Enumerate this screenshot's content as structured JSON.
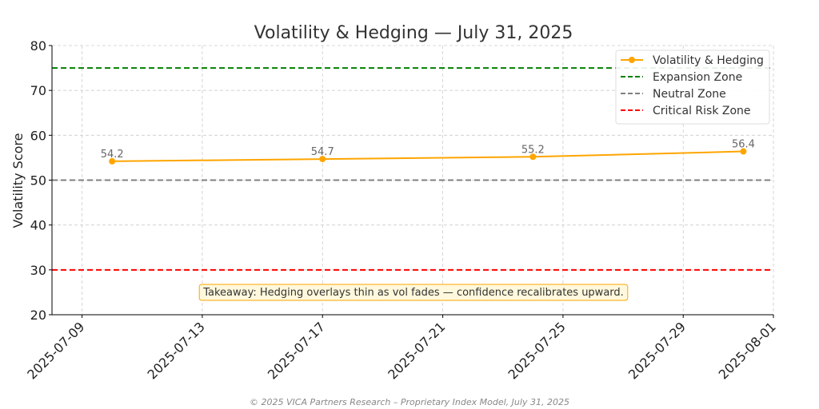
{
  "chart_data": {
    "type": "line",
    "title": "Volatility & Hedging — July 31, 2025",
    "xlabel": "",
    "ylabel": "Volatility Score",
    "ylim": [
      20,
      80
    ],
    "yticks": [
      20,
      30,
      40,
      50,
      60,
      70,
      80
    ],
    "xlim": [
      "2025-07-08",
      "2025-08-01"
    ],
    "xticks": [
      "2025-07-09",
      "2025-07-13",
      "2025-07-17",
      "2025-07-21",
      "2025-07-25",
      "2025-07-29",
      "2025-08-01"
    ],
    "grid": true,
    "legend_position": "top-right",
    "series": [
      {
        "name": "Volatility & Hedging",
        "color": "#FFA500",
        "marker": "circle",
        "x": [
          "2025-07-10",
          "2025-07-17",
          "2025-07-24",
          "2025-07-31"
        ],
        "values": [
          54.2,
          54.7,
          55.2,
          56.4
        ],
        "labels": [
          "54.2",
          "54.7",
          "55.2",
          "56.4"
        ]
      }
    ],
    "reference_lines": [
      {
        "name": "Expansion Zone",
        "y": 75,
        "color": "#008000",
        "style": "dashed"
      },
      {
        "name": "Neutral Zone",
        "y": 50,
        "color": "#808080",
        "style": "dashed"
      },
      {
        "name": "Critical Risk Zone",
        "y": 30,
        "color": "#FF0000",
        "style": "dashed"
      }
    ],
    "annotation": {
      "text": "Takeaway: Hedging overlays thin as vol fades — confidence recalibrates upward.",
      "box_fill": "#FFF8DC",
      "box_edge": "#FFA500"
    }
  },
  "footer": "© 2025 VICA Partners Research – Proprietary Index Model, July 31, 2025"
}
